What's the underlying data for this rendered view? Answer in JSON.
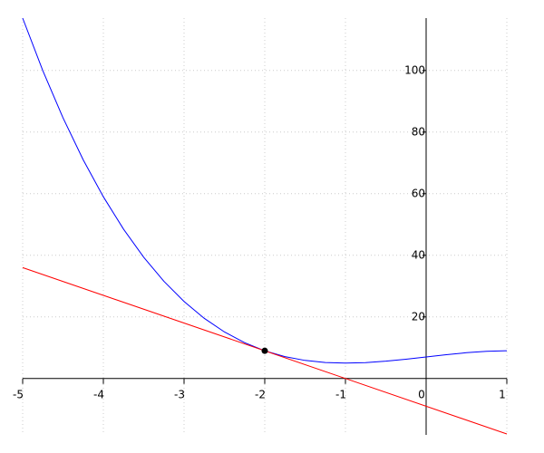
{
  "chart_data": {
    "type": "line",
    "xlim": [
      -5,
      1
    ],
    "ylim": [
      -18.3,
      117
    ],
    "xticks": [
      -5,
      -4,
      -3,
      -2,
      -1,
      0,
      1
    ],
    "yticks": [
      20,
      40,
      60,
      80,
      100
    ],
    "grid": true,
    "series": [
      {
        "color": "#0000ff",
        "x": [
          -5,
          -4.75,
          -4.5,
          -4.25,
          -4,
          -3.75,
          -3.5,
          -3.25,
          -3,
          -2.75,
          -2.5,
          -2.25,
          -2,
          -1.75,
          -1.5,
          -1.25,
          -1,
          -0.75,
          -0.5,
          -0.25,
          0,
          0.25,
          0.5,
          0.75,
          1
        ],
        "values": [
          117,
          99.921875,
          84.625,
          71.015625,
          59,
          48.484375,
          39.375,
          31.578125,
          25,
          19.546875,
          15.125,
          11.640625,
          9,
          7.109375,
          5.875,
          5.203125,
          5,
          5.171875,
          5.625,
          6.265625,
          7,
          7.734375,
          8.375,
          8.828125,
          9
        ]
      },
      {
        "color": "#ff0000",
        "x": [
          -5,
          1
        ],
        "values": [
          36,
          -18
        ]
      }
    ],
    "points": {
      "color": "#000000",
      "x": [
        -2
      ],
      "values": [
        9
      ]
    }
  }
}
